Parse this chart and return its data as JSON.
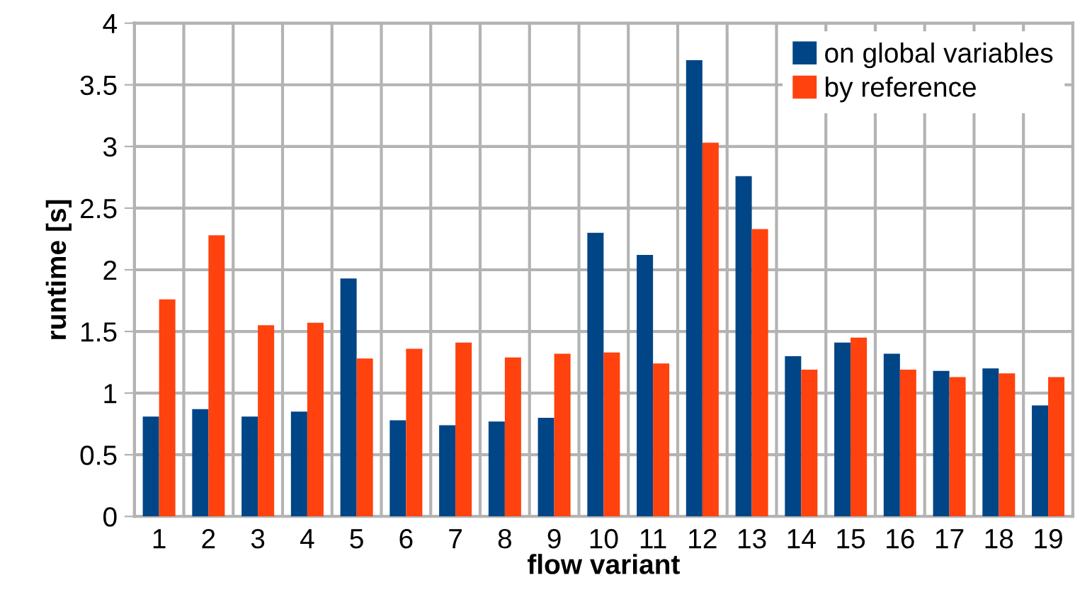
{
  "chart_data": {
    "type": "bar",
    "xlabel": "flow variant",
    "ylabel": "runtime [s]",
    "categories": [
      "1",
      "2",
      "3",
      "4",
      "5",
      "6",
      "7",
      "8",
      "9",
      "10",
      "11",
      "12",
      "13",
      "14",
      "15",
      "16",
      "17",
      "18",
      "19"
    ],
    "series": [
      {
        "name": "on global variables",
        "color": "#004586",
        "values": [
          0.81,
          0.87,
          0.81,
          0.85,
          1.93,
          0.78,
          0.74,
          0.77,
          0.8,
          2.3,
          2.12,
          3.7,
          2.76,
          1.3,
          1.41,
          1.32,
          1.18,
          1.2,
          0.9
        ]
      },
      {
        "name": "by reference",
        "color": "#ff420e",
        "values": [
          1.76,
          2.28,
          1.55,
          1.57,
          1.28,
          1.36,
          1.41,
          1.29,
          1.32,
          1.33,
          1.24,
          3.03,
          2.33,
          1.19,
          1.45,
          1.19,
          1.13,
          1.16,
          1.13
        ]
      }
    ],
    "ylim": [
      0,
      4
    ],
    "yticks": [
      0,
      0.5,
      1,
      1.5,
      2,
      2.5,
      3,
      3.5,
      4
    ],
    "grid": true,
    "legend": "top right"
  }
}
